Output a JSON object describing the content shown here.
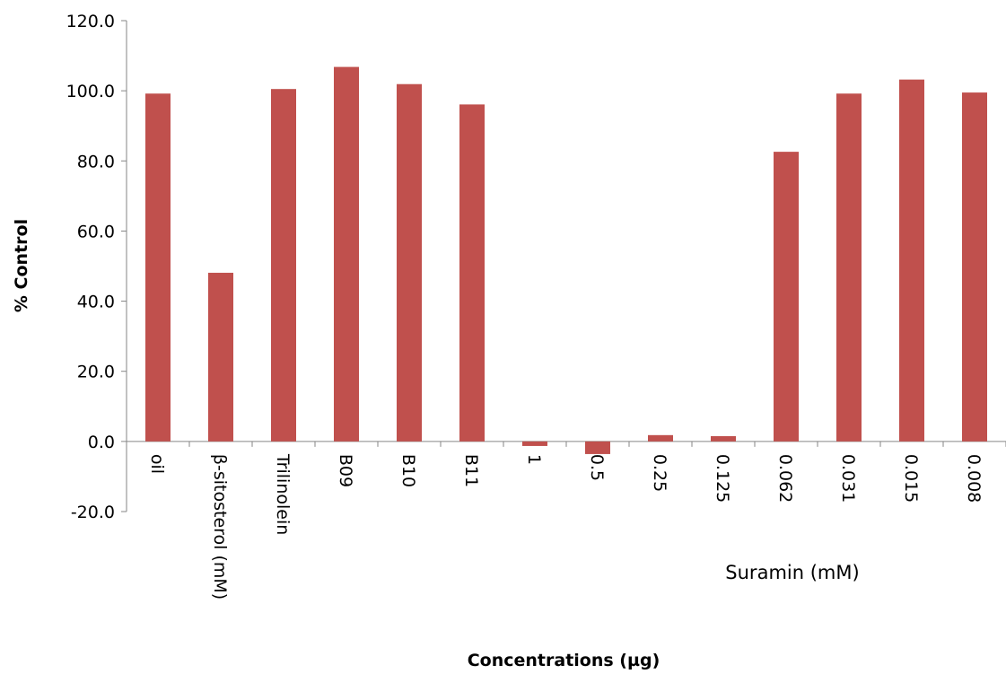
{
  "chart_data": {
    "type": "bar",
    "title": "",
    "xlabel": "Concentrations (µg)",
    "ylabel": "% Control",
    "ylim": [
      -20,
      120
    ],
    "yticks": [
      -20,
      0,
      20,
      40,
      60,
      80,
      100,
      120
    ],
    "ytick_labels": [
      "-20.0",
      "0.0",
      "20.0",
      "40.0",
      "60.0",
      "80.0",
      "100.0",
      "120.0"
    ],
    "categories": [
      "oil",
      "β-sitosterol (mM)",
      "Trilinolein",
      "B09",
      "B10",
      "B11",
      "1",
      "0.5",
      "0.25",
      "0.125",
      "0.062",
      "0.031",
      "0.015",
      "0.008"
    ],
    "values": [
      99.2,
      48.1,
      100.5,
      106.8,
      101.9,
      96.1,
      -1.3,
      -3.6,
      1.8,
      1.5,
      82.6,
      99.2,
      103.2,
      99.5
    ],
    "annotation": "Suramin (mM)",
    "bar_color": "#c0504d",
    "grid": false,
    "legend": "none"
  }
}
